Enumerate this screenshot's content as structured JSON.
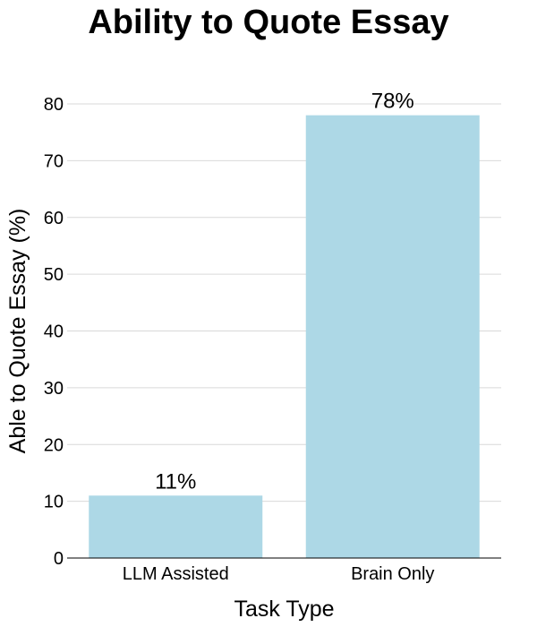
{
  "chart_data": {
    "type": "bar",
    "title": "Ability to Quote Essay",
    "xlabel": "Task Type",
    "ylabel": "Able to Quote Essay (%)",
    "categories": [
      "LLM Assisted",
      "Brain Only"
    ],
    "values": [
      11,
      78
    ],
    "data_labels": [
      "11%",
      "78%"
    ],
    "ylim": [
      0,
      80
    ],
    "yticks": [
      "0",
      "10",
      "20",
      "30",
      "40",
      "50",
      "60",
      "70",
      "80"
    ],
    "grid": "horizontal",
    "bar_color": "#add8e6",
    "grid_color": "#d9d9d9"
  }
}
